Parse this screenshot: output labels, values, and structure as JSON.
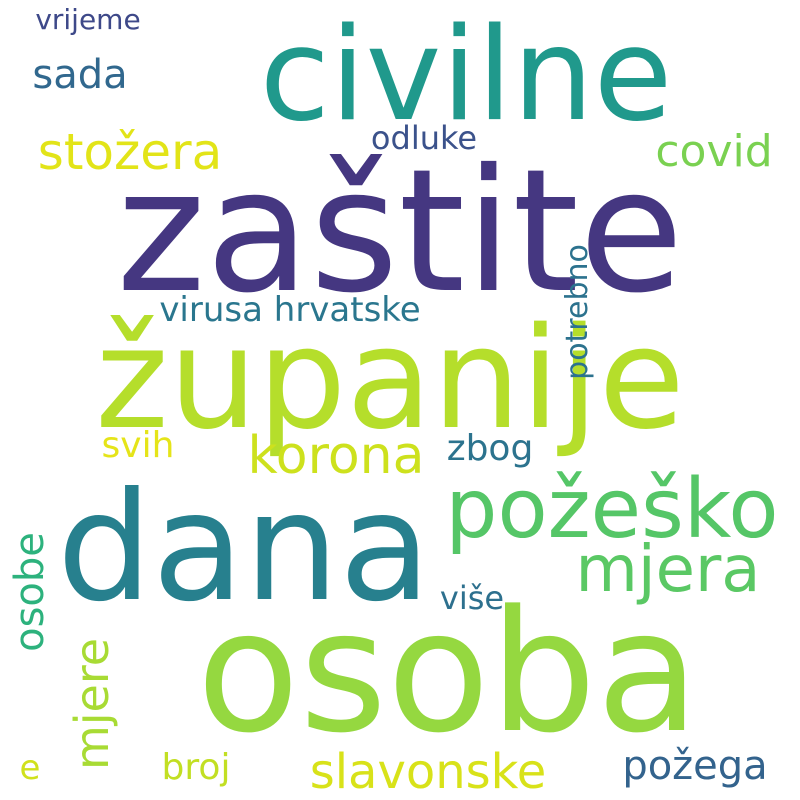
{
  "words": {
    "civilne": {
      "text": "civilne",
      "color": "#20998c"
    },
    "zastite": {
      "text": "zaštite",
      "color": "#453781"
    },
    "zupanije": {
      "text": "županije",
      "color": "#b5de2b"
    },
    "dana": {
      "text": "dana",
      "color": "#27808e"
    },
    "osoba": {
      "text": "osoba",
      "color": "#95d840"
    },
    "pozesko": {
      "text": "požeško",
      "color": "#55c667"
    },
    "mjera": {
      "text": "mjera",
      "color": "#5ac864"
    },
    "korona": {
      "text": "korona",
      "color": "#cde11d"
    },
    "slavonske": {
      "text": "slavonske",
      "color": "#d8e219"
    },
    "stozera": {
      "text": "stožera",
      "color": "#e2e418"
    },
    "covid": {
      "text": "covid",
      "color": "#7ad151"
    },
    "virusa": {
      "text": "virusa hrvatske",
      "color": "#2a768e"
    },
    "sada": {
      "text": "sada",
      "color": "#31688e"
    },
    "vrijeme": {
      "text": "vrijeme",
      "color": "#3e4989"
    },
    "odluke": {
      "text": "odluke",
      "color": "#3b528b"
    },
    "potrebno": {
      "text": "potrebno",
      "color": "#2c728e"
    },
    "svih": {
      "text": "svih",
      "color": "#e5e419"
    },
    "zbog": {
      "text": "zbog",
      "color": "#2c738e"
    },
    "osobe": {
      "text": "osobe",
      "color": "#2db27d"
    },
    "mjere": {
      "text": "mjere",
      "color": "#a8db34"
    },
    "vise": {
      "text": "više",
      "color": "#2d708e"
    },
    "broj": {
      "text": "broj",
      "color": "#c2df23"
    },
    "pozega": {
      "text": "požega",
      "color": "#33638d"
    },
    "e": {
      "text": "e",
      "color": "#d0e11c"
    }
  }
}
